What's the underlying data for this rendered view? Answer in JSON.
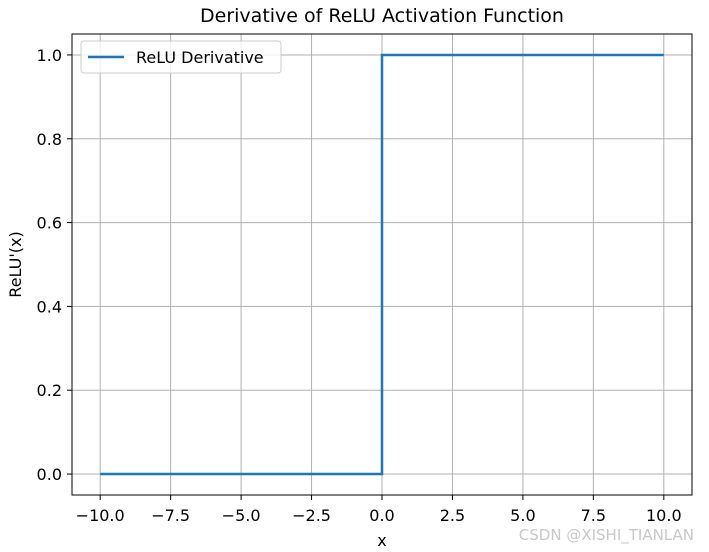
{
  "chart_data": {
    "type": "line",
    "title": "Derivative of ReLU Activation Function",
    "xlabel": "x",
    "ylabel": "ReLU'(x)",
    "xlim": [
      -11,
      11
    ],
    "ylim": [
      -0.05,
      1.05
    ],
    "x_ticks": [
      -10.0,
      -7.5,
      -5.0,
      -2.5,
      0.0,
      2.5,
      5.0,
      7.5,
      10.0
    ],
    "x_tick_labels": [
      "−10.0",
      "−7.5",
      "−5.0",
      "−2.5",
      "0.0",
      "2.5",
      "5.0",
      "7.5",
      "10.0"
    ],
    "y_ticks": [
      0.0,
      0.2,
      0.4,
      0.6,
      0.8,
      1.0
    ],
    "y_tick_labels": [
      "0.0",
      "0.2",
      "0.4",
      "0.6",
      "0.8",
      "1.0"
    ],
    "grid": true,
    "legend_position": "top-left",
    "series": [
      {
        "name": "ReLU Derivative",
        "color": "#1f77b4",
        "x": [
          -10,
          0,
          0,
          10
        ],
        "y": [
          0,
          0,
          1,
          1
        ]
      }
    ]
  },
  "watermark": "CSDN @XISHI_TIANLAN"
}
